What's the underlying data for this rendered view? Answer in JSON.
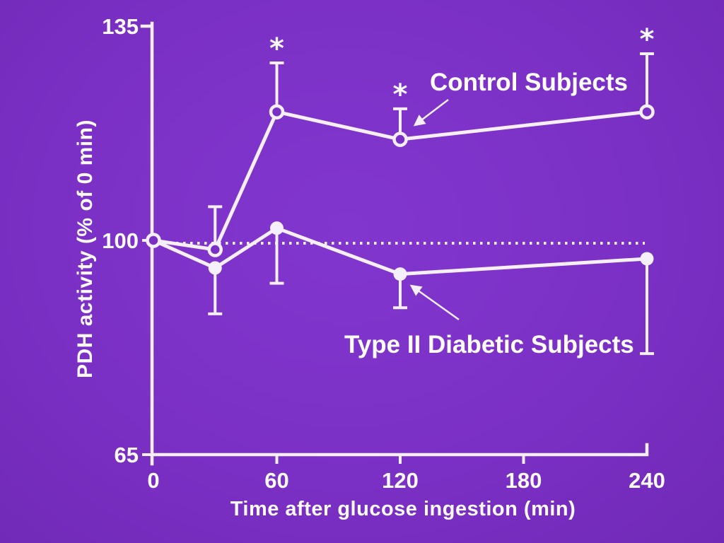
{
  "slide": {
    "background_color": "#7b30c5",
    "ink_color": "#f5eefb",
    "text_color": "#fdfaff"
  },
  "chart_data": {
    "type": "line",
    "title": "",
    "xlabel": "Time after glucose ingestion (min)",
    "ylabel": "PDH activity (% of 0 min)",
    "x": [
      0,
      30,
      60,
      120,
      240
    ],
    "x_ticks": [
      0,
      60,
      120,
      180,
      240
    ],
    "y_ticks": [
      65,
      100,
      135
    ],
    "xlim": [
      0,
      240
    ],
    "ylim": [
      65,
      135
    ],
    "grid": false,
    "legend_position": "inline-annotations",
    "reference_line_y": 100,
    "reference_line_style": "dotted",
    "significance_symbol": "*",
    "series": [
      {
        "name": "Control Subjects",
        "marker": "open-circle",
        "values": [
          100,
          98.5,
          121,
          116.5,
          121
        ],
        "error_caps": [
          null,
          105.5,
          129,
          121.5,
          130.5
        ],
        "error_direction": "up",
        "significance": [
          null,
          null,
          "*",
          "*",
          "*"
        ]
      },
      {
        "name": "Type II Diabetic Subjects",
        "marker": "filled-circle",
        "values": [
          100,
          95.5,
          102,
          94.5,
          97
        ],
        "error_caps": [
          null,
          88,
          93,
          89,
          81.5
        ],
        "error_direction": "down",
        "significance": [
          null,
          null,
          null,
          null,
          null
        ]
      }
    ],
    "annotations": [
      {
        "label": "Control Subjects",
        "points_to": "control series at 120 min"
      },
      {
        "label": "Type II Diabetic Subjects",
        "points_to": "diabetic series at 120 min"
      }
    ]
  }
}
